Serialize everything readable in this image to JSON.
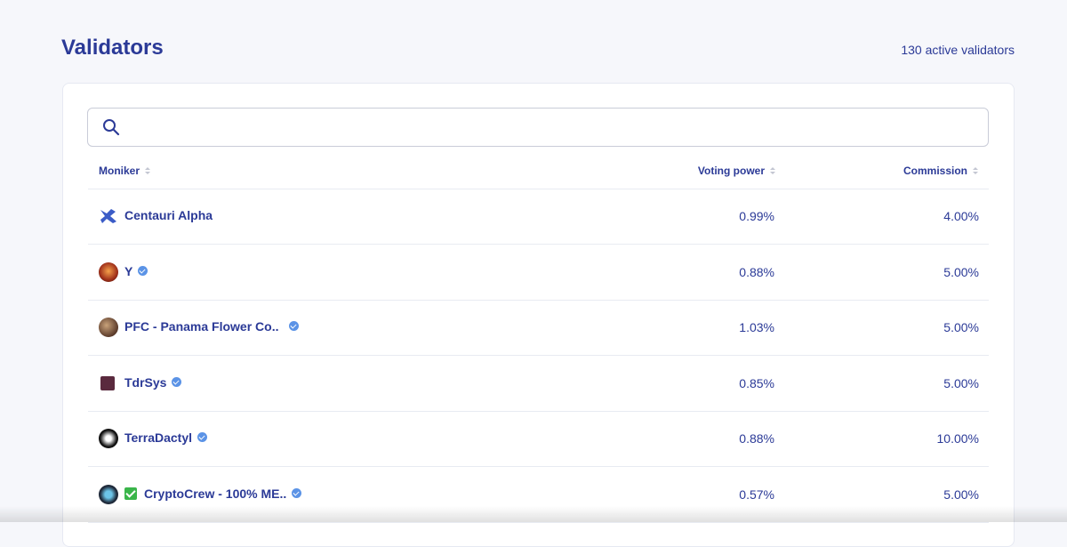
{
  "header": {
    "title": "Validators",
    "active_count": "130 active validators"
  },
  "table": {
    "columns": [
      "Moniker",
      "Voting power",
      "Commission"
    ],
    "rows": [
      {
        "moniker": "Centauri Alpha",
        "verified": false,
        "voting_power": "0.99%",
        "commission": "4.00%"
      },
      {
        "moniker": "Y",
        "verified": true,
        "voting_power": "0.88%",
        "commission": "5.00%"
      },
      {
        "moniker": "PFC - Panama Flower Co..",
        "verified": true,
        "voting_power": "1.03%",
        "commission": "5.00%"
      },
      {
        "moniker": "TdrSys",
        "verified": true,
        "voting_power": "0.85%",
        "commission": "5.00%"
      },
      {
        "moniker": "TerraDactyl",
        "verified": true,
        "voting_power": "0.88%",
        "commission": "10.00%"
      },
      {
        "moniker": "CryptoCrew - 100% ME..",
        "verified": true,
        "voting_power": "0.57%",
        "commission": "5.00%"
      }
    ]
  }
}
